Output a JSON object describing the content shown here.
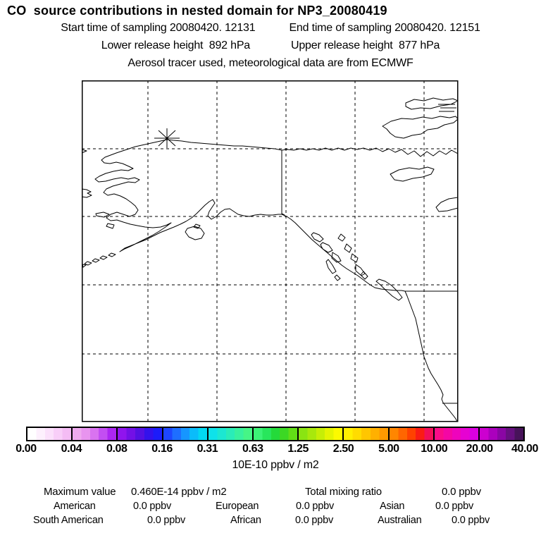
{
  "header": {
    "title": "CO  source contributions in nested domain for NP3_20080419",
    "start_time": "Start time of sampling 20080420. 12131",
    "end_time": "End time of sampling 20080420. 12151",
    "lower_release": "Lower release height  892 hPa",
    "upper_release": "Upper release height  877 hPa",
    "tracer_note": "Aerosol tracer used, meteorological data are from ECMWF"
  },
  "colorbar": {
    "tick_labels": [
      "0.00",
      "0.04",
      "0.08",
      "0.16",
      "0.31",
      "0.63",
      "1.25",
      "2.50",
      "5.00",
      "10.00",
      "20.00",
      "40.00"
    ],
    "unit_label": "10E-10 ppbv / m2",
    "segments": [
      [
        "#ffffff",
        "#fdf0fd",
        "#fbe0fb",
        "#f8cef8",
        "#f4bcf4"
      ],
      [
        "#efaaef",
        "#e894ef",
        "#d973f0",
        "#c34ef2",
        "#ac26f2"
      ],
      [
        "#9014ee",
        "#7310e6",
        "#5410e2",
        "#3312ec",
        "#1c1cfa"
      ],
      [
        "#1e46ff",
        "#1e6eff",
        "#1696ff",
        "#0abcfa",
        "#02d8f2"
      ],
      [
        "#0ee2ea",
        "#1ce7d2",
        "#2aecb8",
        "#38f19e",
        "#46f586"
      ],
      [
        "#3cf276",
        "#28e65c",
        "#24da3a",
        "#3cd824",
        "#62de16"
      ],
      [
        "#8ae412",
        "#a8e80c",
        "#c6ee06",
        "#e4f402",
        "#fcfa00"
      ],
      [
        "#fff000",
        "#ffdc00",
        "#ffc600",
        "#ffb000",
        "#ff9a00"
      ],
      [
        "#ff8600",
        "#ff6600",
        "#ff4200",
        "#fa1c14",
        "#f20e58"
      ],
      [
        "#fa0c88",
        "#f407a4",
        "#ee04bc",
        "#e602d2",
        "#dc00e0"
      ],
      [
        "#cc00d0",
        "#ab00bd",
        "#8a06a4",
        "#671080",
        "#47135a"
      ]
    ]
  },
  "stats": {
    "max_label": "Maximum value",
    "max_value": "0.460E-14 ppbv / m2",
    "total_label": "Total mixing ratio",
    "total_value": "0.0 ppbv",
    "region_rows": [
      [
        {
          "name": "American",
          "value": "0.0 ppbv"
        },
        {
          "name": "European",
          "value": "0.0 ppbv"
        },
        {
          "name": "Asian",
          "value": "0.0 ppbv"
        }
      ],
      [
        {
          "name": "South American",
          "value": "0.0 ppbv"
        },
        {
          "name": "African",
          "value": "0.0 ppbv"
        },
        {
          "name": "Australian",
          "value": "0.0 ppbv"
        }
      ]
    ]
  },
  "chart_data": {
    "type": "heatmap",
    "title": "CO source contributions in nested domain for NP3_20080419",
    "subtitle": [
      "Start time of sampling 20080420. 12131",
      "End time of sampling 20080420. 12151",
      "Lower release height 892 hPa",
      "Upper release height 877 hPa",
      "Aerosol tracer used, meteorological data are from ECMWF"
    ],
    "colorbar_levels": [
      0.0,
      0.04,
      0.08,
      0.16,
      0.31,
      0.63,
      1.25,
      2.5,
      5.0,
      10.0,
      20.0,
      40.0
    ],
    "colorbar_unit": "10E-10 ppbv / m2",
    "maximum_value": "0.460E-14 ppbv / m2",
    "total_mixing_ratio": "0.0 ppbv",
    "source_contributions": {
      "American": "0.0 ppbv",
      "European": "0.0 ppbv",
      "Asian": "0.0 ppbv",
      "South American": "0.0 ppbv",
      "African": "0.0 ppbv",
      "Australian": "0.0 ppbv"
    },
    "map": {
      "region_shown": "Alaska / northwest North America coastlines",
      "grid": "dashed lat-lon graticule",
      "release_marker": "asterisk on northern Alaska coast",
      "field_plotted": "no colored cells visible (all contributions 0.0 ppbv)"
    }
  }
}
